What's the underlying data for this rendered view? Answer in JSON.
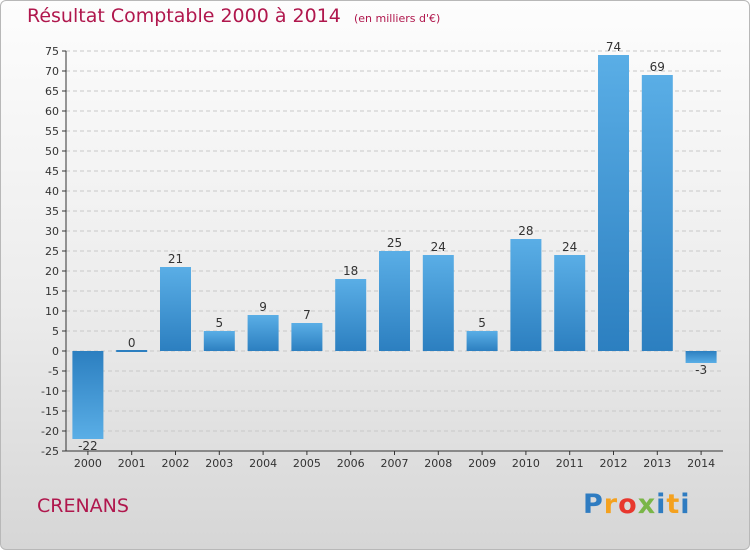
{
  "title": "Résultat Comptable 2000 à 2014",
  "subtitle": "(en milliers d'€)",
  "commune": "CRENANS",
  "logo": {
    "letters": [
      "P",
      "r",
      "o",
      "x",
      "i",
      "t",
      "i"
    ],
    "colors": [
      "#2f7cc1",
      "#f4a11e",
      "#e8372e",
      "#7ab648",
      "#2f7cc1",
      "#f4a11e",
      "#2f7cc1"
    ]
  },
  "colors": {
    "bar_light": "#5aaee6",
    "bar_dark": "#2c7fc0",
    "title": "#b0174d",
    "axis": "#333333",
    "grid": "#c8c8c8"
  },
  "chart_data": {
    "type": "bar",
    "title": "Résultat Comptable 2000 à 2014",
    "subtitle": "(en milliers d'€)",
    "categories": [
      "2000",
      "2001",
      "2002",
      "2003",
      "2004",
      "2005",
      "2006",
      "2007",
      "2008",
      "2009",
      "2010",
      "2011",
      "2012",
      "2013",
      "2014"
    ],
    "values": [
      -22,
      0,
      21,
      5,
      9,
      7,
      18,
      25,
      24,
      5,
      28,
      24,
      74,
      69,
      -3
    ],
    "ylim": [
      -25,
      75
    ],
    "ytick_step": 5,
    "grid": true
  }
}
